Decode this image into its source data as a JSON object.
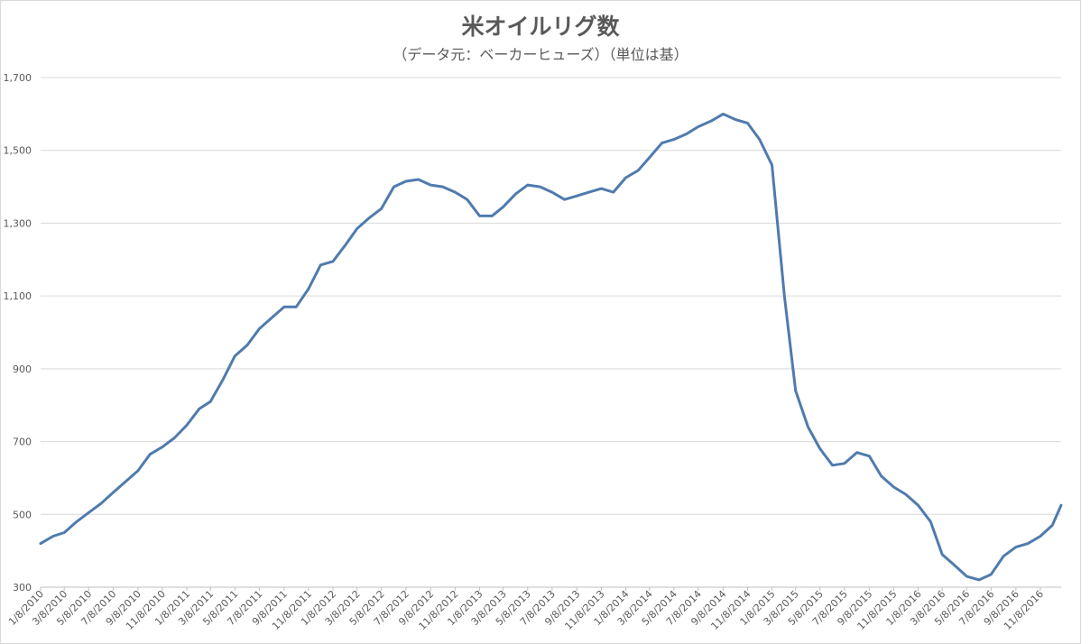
{
  "chart_data": {
    "type": "line",
    "title": "米オイルリグ数",
    "subtitle": "（データ元：ベーカーヒューズ）（単位は基）",
    "xlabel": "",
    "ylabel": "",
    "ylim": [
      300,
      1700
    ],
    "yticks": [
      "300",
      "500",
      "700",
      "900",
      "1,100",
      "1,300",
      "1,500",
      "1,700"
    ],
    "ytick_values": [
      300,
      500,
      700,
      900,
      1100,
      1300,
      1500,
      1700
    ],
    "grid": true,
    "legend": "none",
    "line_color": "#4f7bae",
    "x_tick_labels": [
      "1/8/2010",
      "3/8/2010",
      "5/8/2010",
      "7/8/2010",
      "9/8/2010",
      "11/8/2010",
      "1/8/2011",
      "3/8/2011",
      "5/8/2011",
      "7/8/2011",
      "9/8/2011",
      "11/8/2011",
      "1/8/2012",
      "3/8/2012",
      "5/8/2012",
      "7/8/2012",
      "9/8/2012",
      "11/8/2012",
      "1/8/2013",
      "3/8/2013",
      "5/8/2013",
      "7/8/2013",
      "9/8/2013",
      "11/8/2013",
      "1/8/2014",
      "3/8/2014",
      "5/8/2014",
      "7/8/2014",
      "9/8/2014",
      "11/8/2014",
      "1/8/2015",
      "3/8/2015",
      "5/8/2015",
      "7/8/2015",
      "9/8/2015",
      "11/8/2015",
      "1/8/2016",
      "3/8/2016",
      "5/8/2016",
      "7/8/2016",
      "9/8/2016",
      "11/8/2016"
    ],
    "series": [
      {
        "x": [
          "2010-01-08",
          "2010-02-08",
          "2010-03-08",
          "2010-04-08",
          "2010-05-08",
          "2010-06-08",
          "2010-07-08",
          "2010-08-08",
          "2010-09-08",
          "2010-10-08",
          "2010-11-08",
          "2010-12-08",
          "2011-01-08",
          "2011-02-08",
          "2011-03-08",
          "2011-04-08",
          "2011-05-08",
          "2011-06-08",
          "2011-07-08",
          "2011-08-08",
          "2011-09-08",
          "2011-10-08",
          "2011-11-08",
          "2011-12-08",
          "2012-01-08",
          "2012-02-08",
          "2012-03-08",
          "2012-04-08",
          "2012-05-08",
          "2012-06-08",
          "2012-07-08",
          "2012-08-08",
          "2012-09-08",
          "2012-10-08",
          "2012-11-08",
          "2012-12-08",
          "2013-01-08",
          "2013-02-08",
          "2013-03-08",
          "2013-04-08",
          "2013-05-08",
          "2013-06-08",
          "2013-07-08",
          "2013-08-08",
          "2013-09-08",
          "2013-10-08",
          "2013-11-08",
          "2013-12-08",
          "2014-01-08",
          "2014-02-08",
          "2014-03-08",
          "2014-04-08",
          "2014-05-08",
          "2014-06-08",
          "2014-07-08",
          "2014-08-08",
          "2014-09-08",
          "2014-10-08",
          "2014-11-08",
          "2014-12-08",
          "2015-01-08",
          "2015-02-08",
          "2015-03-08",
          "2015-04-08",
          "2015-05-08",
          "2015-06-08",
          "2015-07-08",
          "2015-08-08",
          "2015-09-08",
          "2015-10-08",
          "2015-11-08",
          "2015-12-08",
          "2016-01-08",
          "2016-02-08",
          "2016-03-08",
          "2016-04-08",
          "2016-05-08",
          "2016-06-08",
          "2016-07-08",
          "2016-08-08",
          "2016-09-08",
          "2016-10-08",
          "2016-11-08",
          "2016-12-08",
          "2016-12-30"
        ],
        "values": [
          420,
          440,
          450,
          480,
          505,
          530,
          560,
          590,
          620,
          665,
          685,
          710,
          745,
          790,
          810,
          870,
          935,
          965,
          1010,
          1040,
          1070,
          1070,
          1120,
          1185,
          1195,
          1240,
          1285,
          1315,
          1340,
          1400,
          1415,
          1420,
          1405,
          1400,
          1385,
          1365,
          1320,
          1320,
          1345,
          1380,
          1405,
          1400,
          1385,
          1365,
          1375,
          1385,
          1395,
          1385,
          1425,
          1445,
          1480,
          1520,
          1530,
          1545,
          1565,
          1580,
          1600,
          1585,
          1575,
          1530,
          1460,
          1100,
          840,
          740,
          680,
          635,
          640,
          670,
          660,
          605,
          575,
          555,
          525,
          480,
          390,
          360,
          330,
          320,
          335,
          385,
          410,
          420,
          440,
          470,
          525
        ]
      }
    ]
  }
}
